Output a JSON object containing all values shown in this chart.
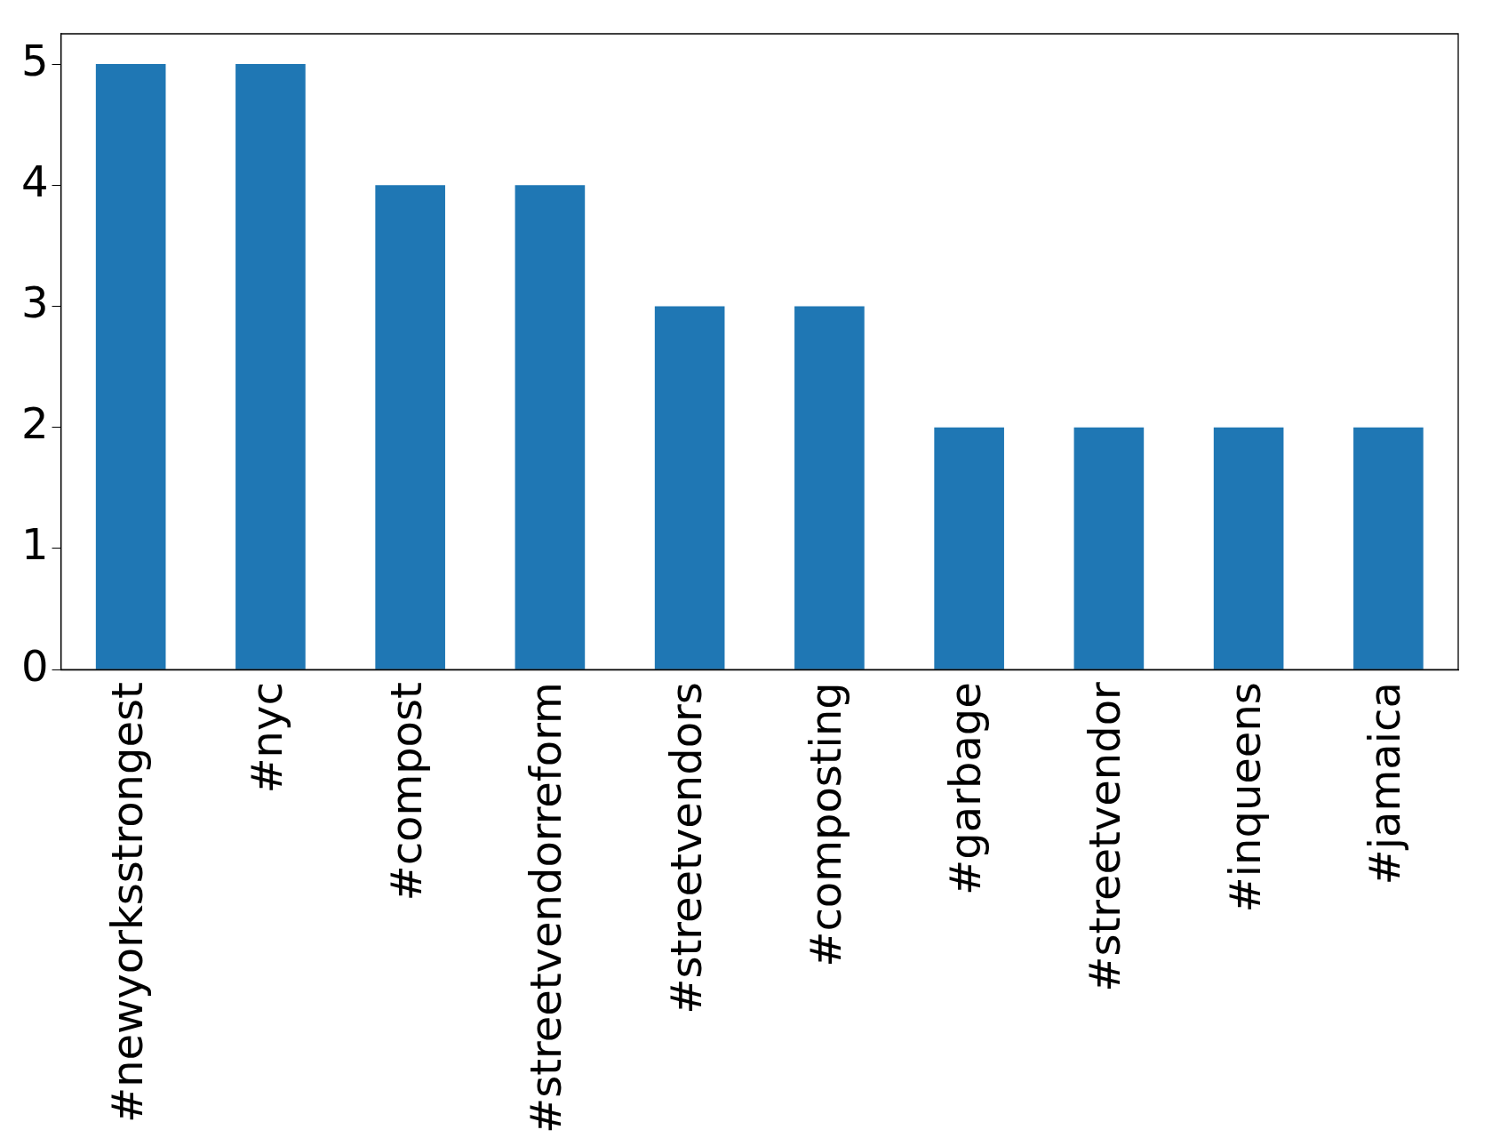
{
  "chart_data": {
    "type": "bar",
    "categories": [
      "#newyorksstrongest",
      "#nyc",
      "#compost",
      "#streetvendorreform",
      "#streetvendors",
      "#composting",
      "#garbage",
      "#streetvendor",
      "#inqueens",
      "#jamaica"
    ],
    "values": [
      5,
      5,
      4,
      4,
      3,
      3,
      2,
      2,
      2,
      2
    ],
    "color": "#1f77b4",
    "ylim": [
      0,
      5.25
    ],
    "yticks": [
      0,
      1,
      2,
      3,
      4,
      5
    ],
    "grid": false
  }
}
